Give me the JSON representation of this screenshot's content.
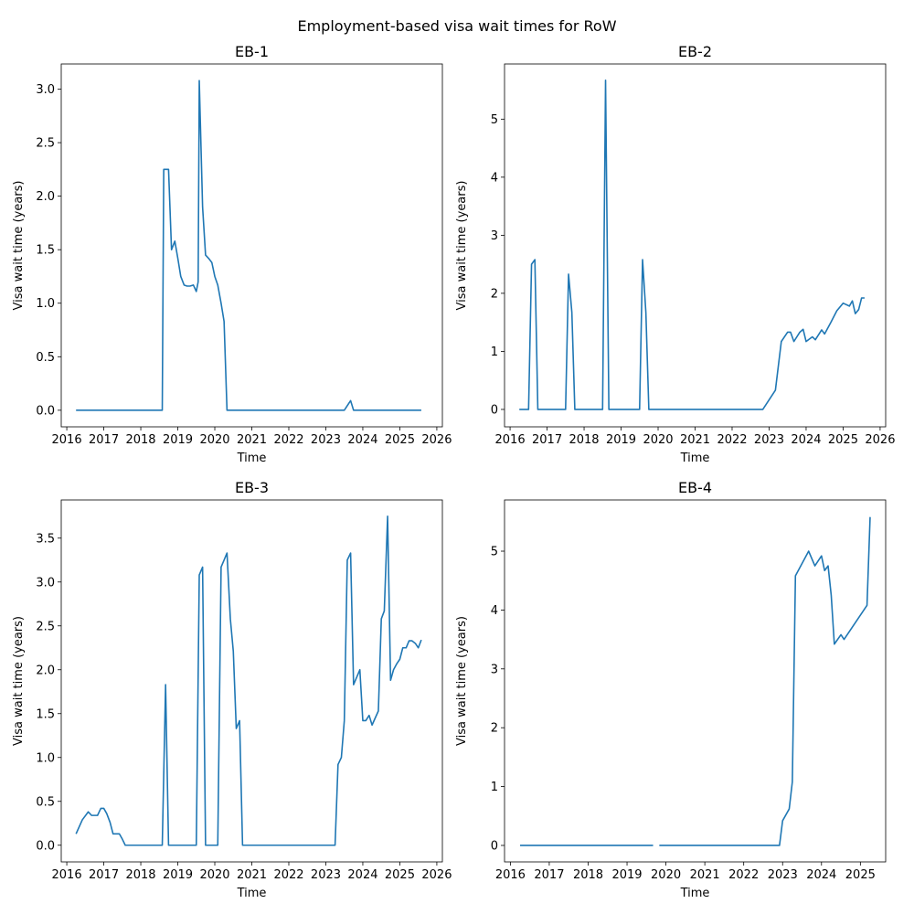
{
  "suptitle": "Employment-based visa wait times for RoW",
  "chart_data": [
    {
      "type": "line",
      "title": "EB-1",
      "xlabel": "Time",
      "ylabel": "Visa wait time (years)",
      "xlim": [
        2015.85,
        2026.15
      ],
      "ylim": [
        -0.155,
        3.235
      ],
      "xticks": [
        2016,
        2017,
        2018,
        2019,
        2020,
        2021,
        2022,
        2023,
        2024,
        2025,
        2026
      ],
      "yticks": [
        0.0,
        0.5,
        1.0,
        1.5,
        2.0,
        2.5,
        3.0
      ],
      "ytick_labels": [
        "0.0",
        "0.5",
        "1.0",
        "1.5",
        "2.0",
        "2.5",
        "3.0"
      ],
      "color": "#1f77b4",
      "x": [
        2016.25,
        2016.5,
        2017.0,
        2017.5,
        2018.0,
        2018.5,
        2018.58,
        2018.62,
        2018.67,
        2018.75,
        2018.83,
        2018.92,
        2019.0,
        2019.08,
        2019.17,
        2019.25,
        2019.33,
        2019.42,
        2019.5,
        2019.55,
        2019.58,
        2019.67,
        2019.75,
        2019.83,
        2019.92,
        2020.0,
        2020.08,
        2020.17,
        2020.25,
        2020.33,
        2020.5,
        2021.0,
        2022.0,
        2023.0,
        2023.5,
        2023.67,
        2023.75,
        2024.0,
        2025.0,
        2025.58
      ],
      "y": [
        0.0,
        0.0,
        0.0,
        0.0,
        0.0,
        0.0,
        0.0,
        2.25,
        2.25,
        2.25,
        1.5,
        1.58,
        1.42,
        1.25,
        1.17,
        1.16,
        1.16,
        1.17,
        1.11,
        1.2,
        3.08,
        1.9,
        1.45,
        1.42,
        1.38,
        1.25,
        1.17,
        1.0,
        0.83,
        0.0,
        0.0,
        0.0,
        0.0,
        0.0,
        0.0,
        0.09,
        0.0,
        0.0,
        0.0,
        0.0
      ]
    },
    {
      "type": "line",
      "title": "EB-2",
      "xlabel": "Time",
      "ylabel": "Visa wait time (years)",
      "xlim": [
        2015.85,
        2026.15
      ],
      "ylim": [
        -0.3,
        5.95
      ],
      "xticks": [
        2016,
        2017,
        2018,
        2019,
        2020,
        2021,
        2022,
        2023,
        2024,
        2025,
        2026
      ],
      "yticks": [
        0,
        1,
        2,
        3,
        4,
        5
      ],
      "ytick_labels": [
        "0",
        "1",
        "2",
        "3",
        "4",
        "5"
      ],
      "color": "#1f77b4",
      "x": [
        2016.25,
        2016.5,
        2016.58,
        2016.67,
        2016.75,
        2017.0,
        2017.5,
        2017.58,
        2017.67,
        2017.75,
        2018.0,
        2018.5,
        2018.58,
        2018.67,
        2018.75,
        2019.0,
        2019.5,
        2019.58,
        2019.67,
        2019.75,
        2020.0,
        2021.0,
        2022.0,
        2022.83,
        2023.17,
        2023.33,
        2023.5,
        2023.58,
        2023.67,
        2023.83,
        2023.92,
        2024.0,
        2024.17,
        2024.25,
        2024.42,
        2024.5,
        2024.67,
        2024.83,
        2025.0,
        2025.17,
        2025.25,
        2025.33,
        2025.42,
        2025.5,
        2025.58
      ],
      "y": [
        0.0,
        0.0,
        2.5,
        2.58,
        0.0,
        0.0,
        0.0,
        2.33,
        1.67,
        0.0,
        0.0,
        0.0,
        5.67,
        0.0,
        0.0,
        0.0,
        0.0,
        2.58,
        1.67,
        0.0,
        0.0,
        0.0,
        0.0,
        0.0,
        0.33,
        1.17,
        1.33,
        1.33,
        1.17,
        1.33,
        1.38,
        1.17,
        1.25,
        1.2,
        1.37,
        1.3,
        1.5,
        1.7,
        1.83,
        1.78,
        1.87,
        1.65,
        1.72,
        1.92,
        1.92
      ]
    },
    {
      "type": "line",
      "title": "EB-3",
      "xlabel": "Time",
      "ylabel": "Visa wait time (years)",
      "xlim": [
        2015.85,
        2026.15
      ],
      "ylim": [
        -0.19,
        3.935
      ],
      "xticks": [
        2016,
        2017,
        2018,
        2019,
        2020,
        2021,
        2022,
        2023,
        2024,
        2025,
        2026
      ],
      "yticks": [
        0.0,
        0.5,
        1.0,
        1.5,
        2.0,
        2.5,
        3.0,
        3.5
      ],
      "ytick_labels": [
        "0.0",
        "0.5",
        "1.0",
        "1.5",
        "2.0",
        "2.5",
        "3.0",
        "3.5"
      ],
      "color": "#1f77b4",
      "x": [
        2016.25,
        2016.42,
        2016.58,
        2016.67,
        2016.83,
        2016.92,
        2017.0,
        2017.08,
        2017.17,
        2017.25,
        2017.33,
        2017.42,
        2017.5,
        2017.58,
        2018.0,
        2018.5,
        2018.58,
        2018.67,
        2018.75,
        2019.0,
        2019.5,
        2019.58,
        2019.67,
        2019.75,
        2020.0,
        2020.08,
        2020.17,
        2020.25,
        2020.33,
        2020.42,
        2020.5,
        2020.58,
        2020.67,
        2020.75,
        2021.0,
        2022.0,
        2023.0,
        2023.25,
        2023.33,
        2023.42,
        2023.5,
        2023.58,
        2023.67,
        2023.75,
        2023.92,
        2024.0,
        2024.08,
        2024.17,
        2024.25,
        2024.42,
        2024.5,
        2024.58,
        2024.67,
        2024.75,
        2024.83,
        2024.92,
        2025.0,
        2025.08,
        2025.17,
        2025.25,
        2025.33,
        2025.42,
        2025.5,
        2025.58
      ],
      "y": [
        0.13,
        0.29,
        0.38,
        0.34,
        0.34,
        0.42,
        0.42,
        0.36,
        0.26,
        0.13,
        0.13,
        0.13,
        0.07,
        0.0,
        0.0,
        0.0,
        0.0,
        1.83,
        0.0,
        0.0,
        0.0,
        3.08,
        3.17,
        0.0,
        0.0,
        0.0,
        3.17,
        3.25,
        3.33,
        2.58,
        2.21,
        1.33,
        1.42,
        0.0,
        0.0,
        0.0,
        0.0,
        0.0,
        0.92,
        1.0,
        1.42,
        3.25,
        3.33,
        1.83,
        2.0,
        1.42,
        1.42,
        1.48,
        1.37,
        1.53,
        2.58,
        2.67,
        3.75,
        1.88,
        2.0,
        2.07,
        2.12,
        2.25,
        2.25,
        2.33,
        2.33,
        2.3,
        2.25,
        2.34
      ]
    },
    {
      "type": "line",
      "title": "EB-4",
      "xlabel": "Time",
      "ylabel": "Visa wait time (years)",
      "xlim": [
        2015.85,
        2025.65
      ],
      "ylim": [
        -0.28,
        5.87
      ],
      "xticks": [
        2016,
        2017,
        2018,
        2019,
        2020,
        2021,
        2022,
        2023,
        2024,
        2025
      ],
      "yticks": [
        0,
        1,
        2,
        3,
        4,
        5
      ],
      "ytick_labels": [
        "0",
        "1",
        "2",
        "3",
        "4",
        "5"
      ],
      "color": "#1f77b4",
      "segments": [
        {
          "x": [
            2016.25,
            2017.0,
            2018.0,
            2019.0,
            2019.67
          ],
          "y": [
            0.0,
            0.0,
            0.0,
            0.0,
            0.0
          ]
        },
        {
          "x": [
            2019.83,
            2020.0,
            2021.0,
            2022.0,
            2022.92,
            2023.0,
            2023.17,
            2023.25,
            2023.33,
            2023.67,
            2023.83,
            2024.0,
            2024.08,
            2024.17,
            2024.25,
            2024.33,
            2024.5,
            2024.58,
            2025.17,
            2025.25
          ],
          "y": [
            0.0,
            0.0,
            0.0,
            0.0,
            0.0,
            0.42,
            0.62,
            1.08,
            4.58,
            5.0,
            4.75,
            4.92,
            4.67,
            4.75,
            4.25,
            3.42,
            3.58,
            3.5,
            4.08,
            5.58
          ]
        }
      ]
    }
  ]
}
